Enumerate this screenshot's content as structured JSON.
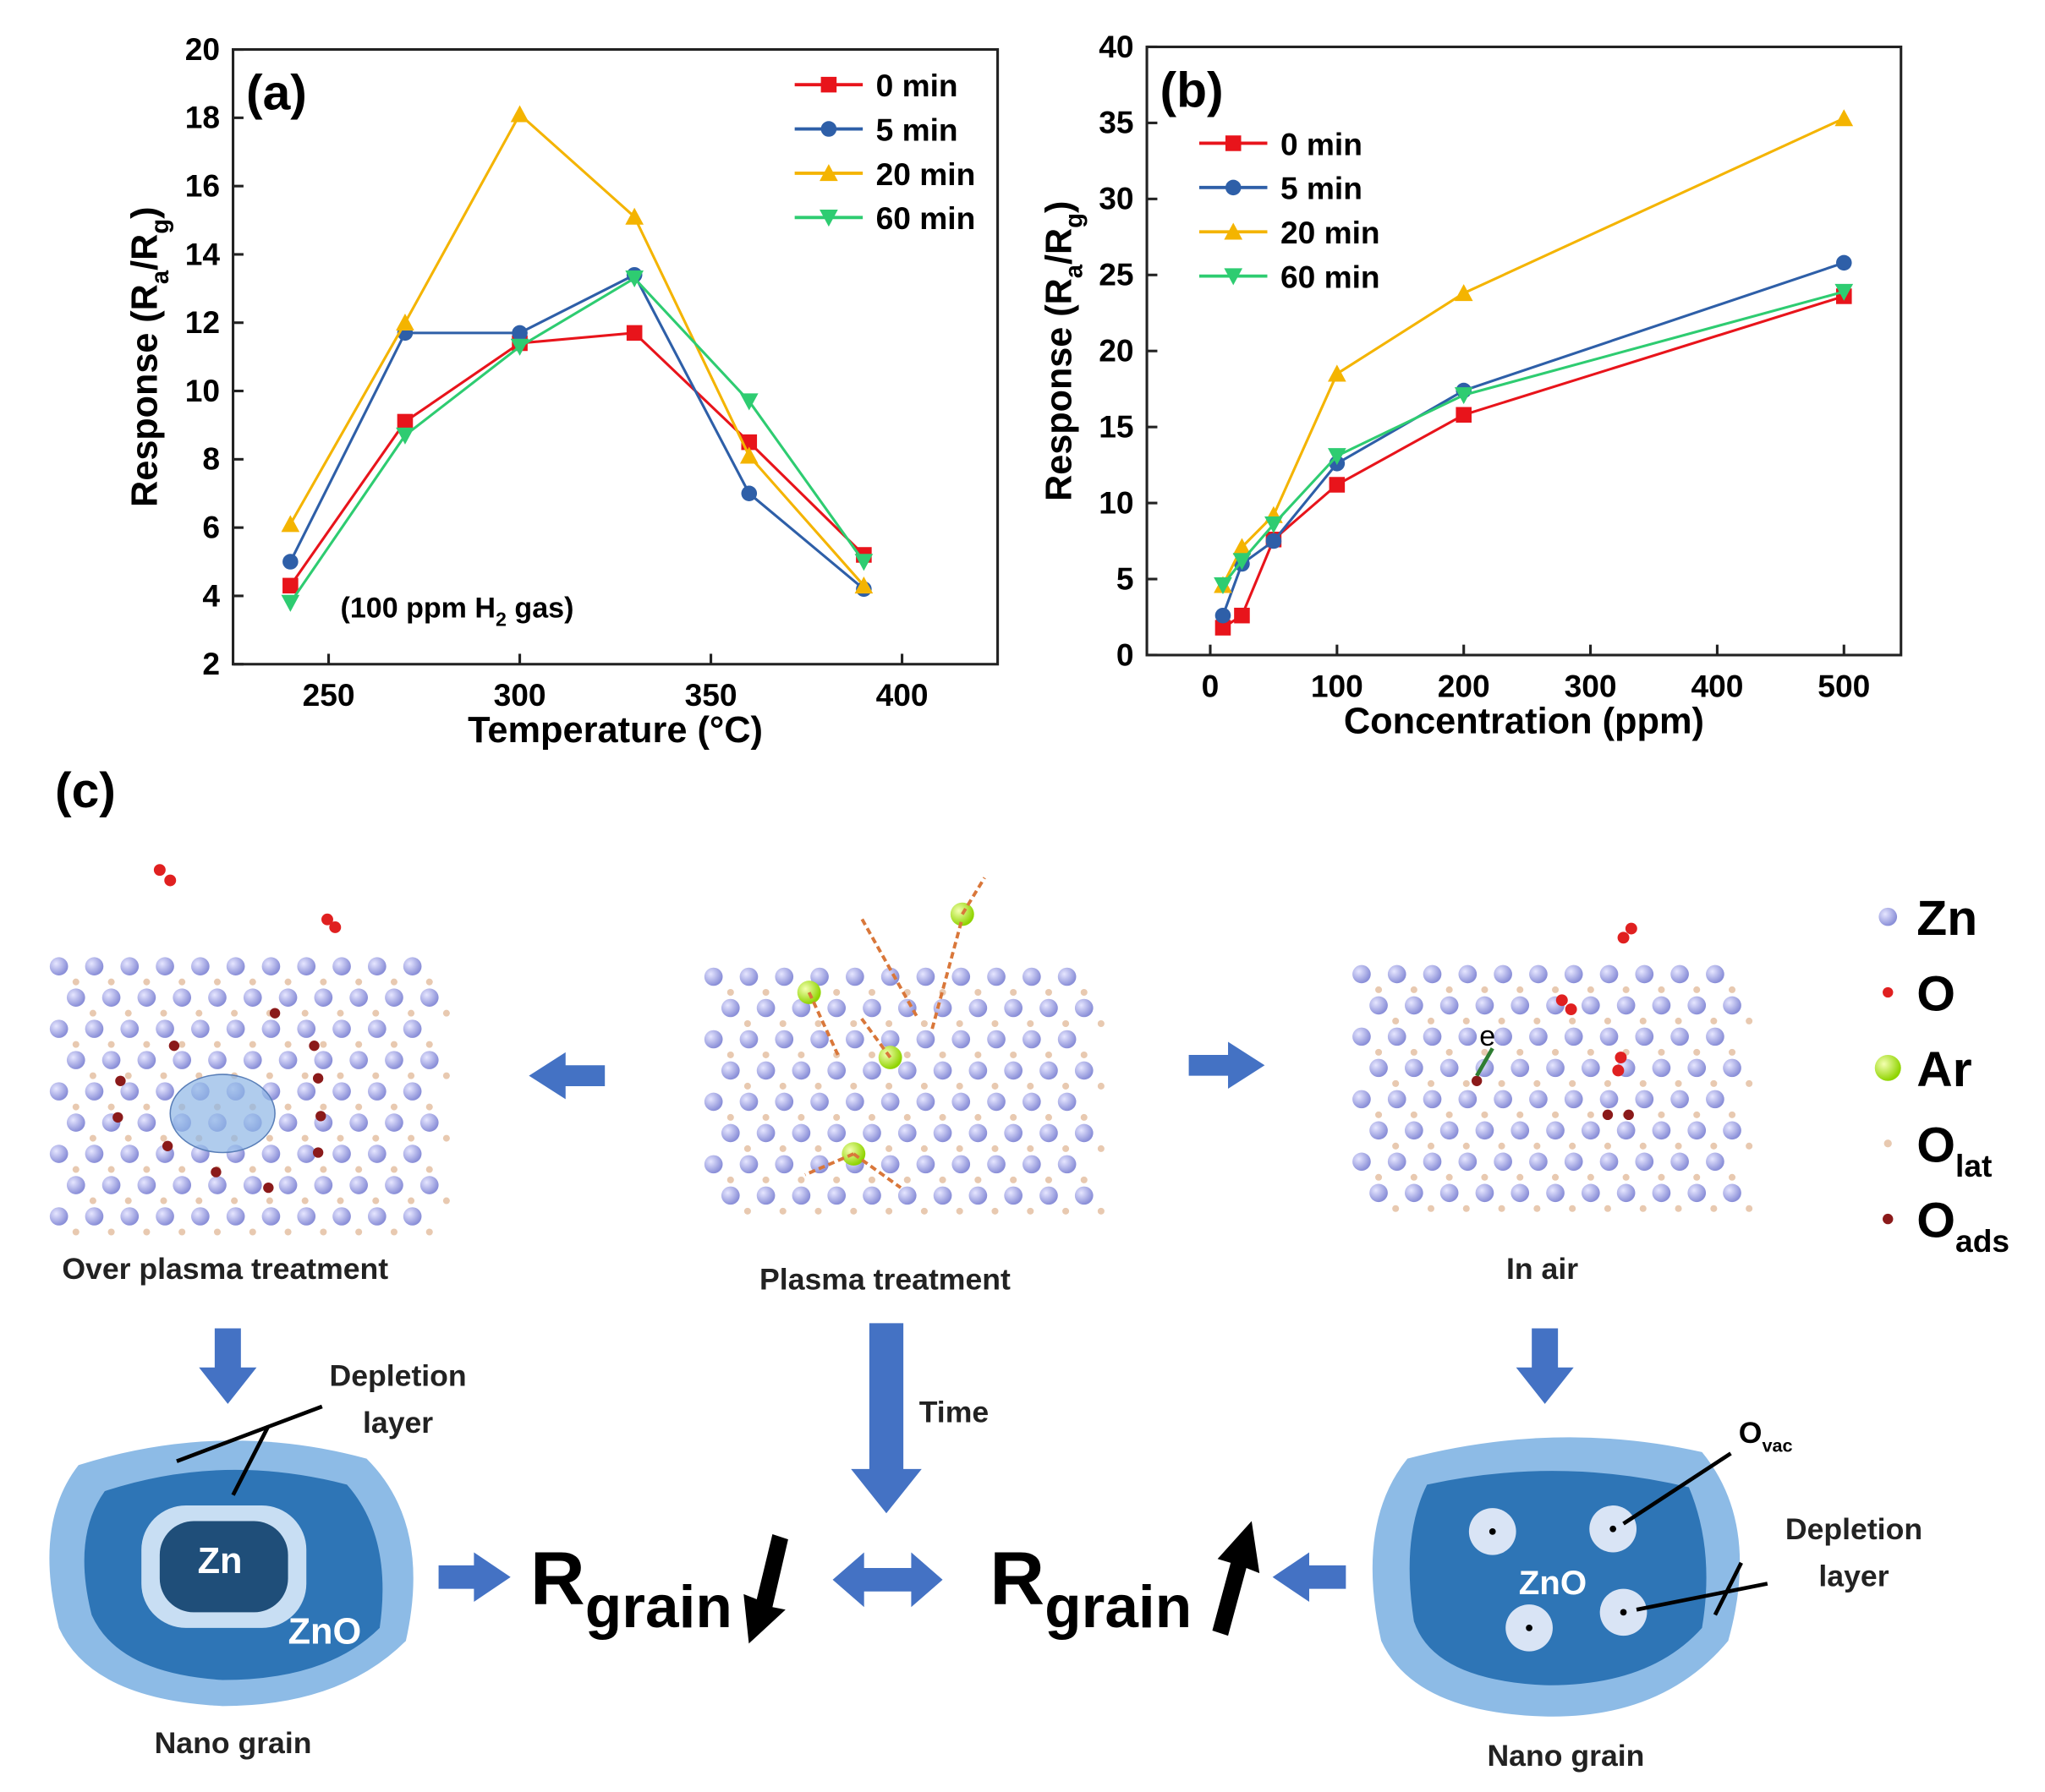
{
  "chart_data": [
    {
      "type": "line",
      "title": "(a)",
      "xlabel": "Temperature (°C)",
      "ylabel": [
        "Response (R",
        "a",
        "/R",
        "g",
        ")"
      ],
      "annotation": [
        "(100 ppm H",
        "2",
        " gas)"
      ],
      "x": [
        240,
        270,
        300,
        330,
        360,
        390
      ],
      "xlim": [
        225,
        425
      ],
      "xticks": [
        250,
        300,
        350,
        400
      ],
      "ylim": [
        2,
        20
      ],
      "yticks": [
        2,
        4,
        6,
        8,
        10,
        12,
        14,
        16,
        18,
        20
      ],
      "legend": "upper right",
      "series": [
        {
          "name": "0 min",
          "color": "#e8141b",
          "marker": "square",
          "values": [
            4.3,
            9.1,
            11.4,
            11.7,
            8.5,
            5.2
          ]
        },
        {
          "name": "5 min",
          "color": "#2e5fa8",
          "marker": "circle",
          "values": [
            5.0,
            11.7,
            11.7,
            13.4,
            7.0,
            4.2
          ]
        },
        {
          "name": "20 min",
          "color": "#f4b400",
          "marker": "triangle-up",
          "values": [
            6.1,
            12.0,
            18.1,
            15.1,
            8.1,
            4.3
          ]
        },
        {
          "name": "60 min",
          "color": "#2ecc71",
          "marker": "triangle-down",
          "values": [
            3.8,
            8.7,
            11.3,
            13.3,
            9.7,
            5.0
          ]
        }
      ]
    },
    {
      "type": "line",
      "title": "(b)",
      "xlabel": "Concentration (ppm)",
      "ylabel": [
        "Response (R",
        "a",
        "/R",
        "g",
        ")"
      ],
      "x": [
        10,
        25,
        50,
        100,
        200,
        500
      ],
      "xlim": [
        -50,
        545
      ],
      "xticks": [
        0,
        100,
        200,
        300,
        400,
        500
      ],
      "ylim": [
        0,
        40
      ],
      "yticks": [
        0,
        5,
        10,
        15,
        20,
        25,
        30,
        35,
        40
      ],
      "legend": "upper left",
      "series": [
        {
          "name": "0 min",
          "color": "#e8141b",
          "marker": "square",
          "values": [
            1.8,
            2.6,
            7.6,
            11.2,
            15.8,
            23.6
          ]
        },
        {
          "name": "5 min",
          "color": "#2e5fa8",
          "marker": "circle",
          "values": [
            2.6,
            6.0,
            7.5,
            12.6,
            17.4,
            25.8
          ]
        },
        {
          "name": "20 min",
          "color": "#f4b400",
          "marker": "triangle-up",
          "values": [
            4.6,
            7.1,
            9.2,
            18.5,
            23.8,
            35.3
          ]
        },
        {
          "name": "60 min",
          "color": "#2ecc71",
          "marker": "triangle-down",
          "values": [
            4.6,
            6.2,
            8.6,
            13.1,
            17.1,
            23.9
          ]
        }
      ]
    }
  ],
  "diagram": {
    "label": "(c)",
    "legend": [
      [
        "Zn"
      ],
      [
        "O"
      ],
      [
        "Ar"
      ],
      [
        "O",
        "lat"
      ],
      [
        "O",
        "ads"
      ]
    ],
    "left_caption": "Over plasma treatment",
    "center_caption": "Plasma treatment",
    "right_caption": "In air",
    "electron": "e",
    "left_depletion": [
      "Depletion",
      "layer"
    ],
    "left_core": "Zn",
    "left_shell": "ZnO",
    "left_grain": "Nano grain",
    "time": "Time",
    "r_left": [
      "R",
      "grain"
    ],
    "r_right": [
      "R",
      "grain"
    ],
    "vacancy": [
      "O",
      "vac"
    ],
    "right_depletion": [
      "Depletion",
      "layer"
    ],
    "right_core": "ZnO",
    "right_grain": "Nano grain"
  }
}
